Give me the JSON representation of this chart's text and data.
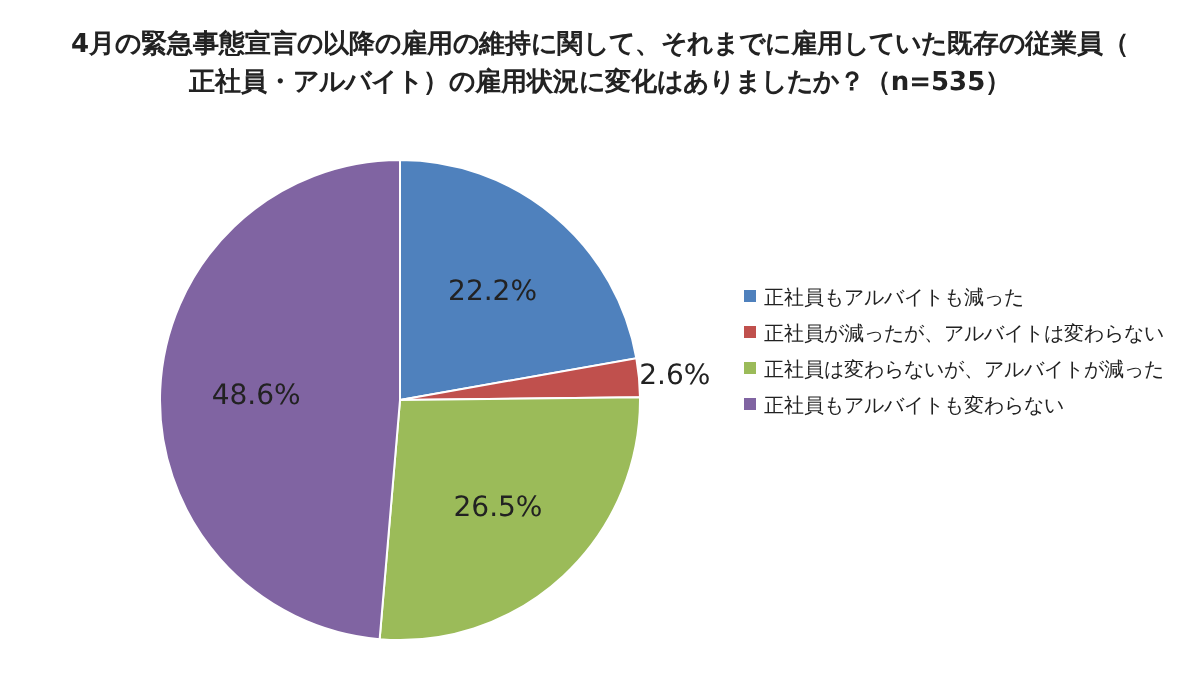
{
  "chart_data": {
    "type": "pie",
    "title": "4月の緊急事態宣言の以降の雇用の維持に関して、それまでに雇用していた既存の従業員（正社員・アルバイト）の雇用状況に変化はありましたか？（n=535）",
    "categories": [
      "正社員もアルバイトも減った",
      "正社員が減ったが、アルバイトは変わらない",
      "正社員は変わらないが、アルバイトが減った",
      "正社員もアルバイトも変わらない"
    ],
    "values": [
      22.2,
      2.6,
      26.5,
      48.6
    ],
    "colors": [
      "#4f81bd",
      "#c0504d",
      "#9bbb59",
      "#8064a2"
    ],
    "value_labels": [
      "22.2%",
      "2.6%",
      "26.5%",
      "48.6%"
    ],
    "legend": "right"
  }
}
